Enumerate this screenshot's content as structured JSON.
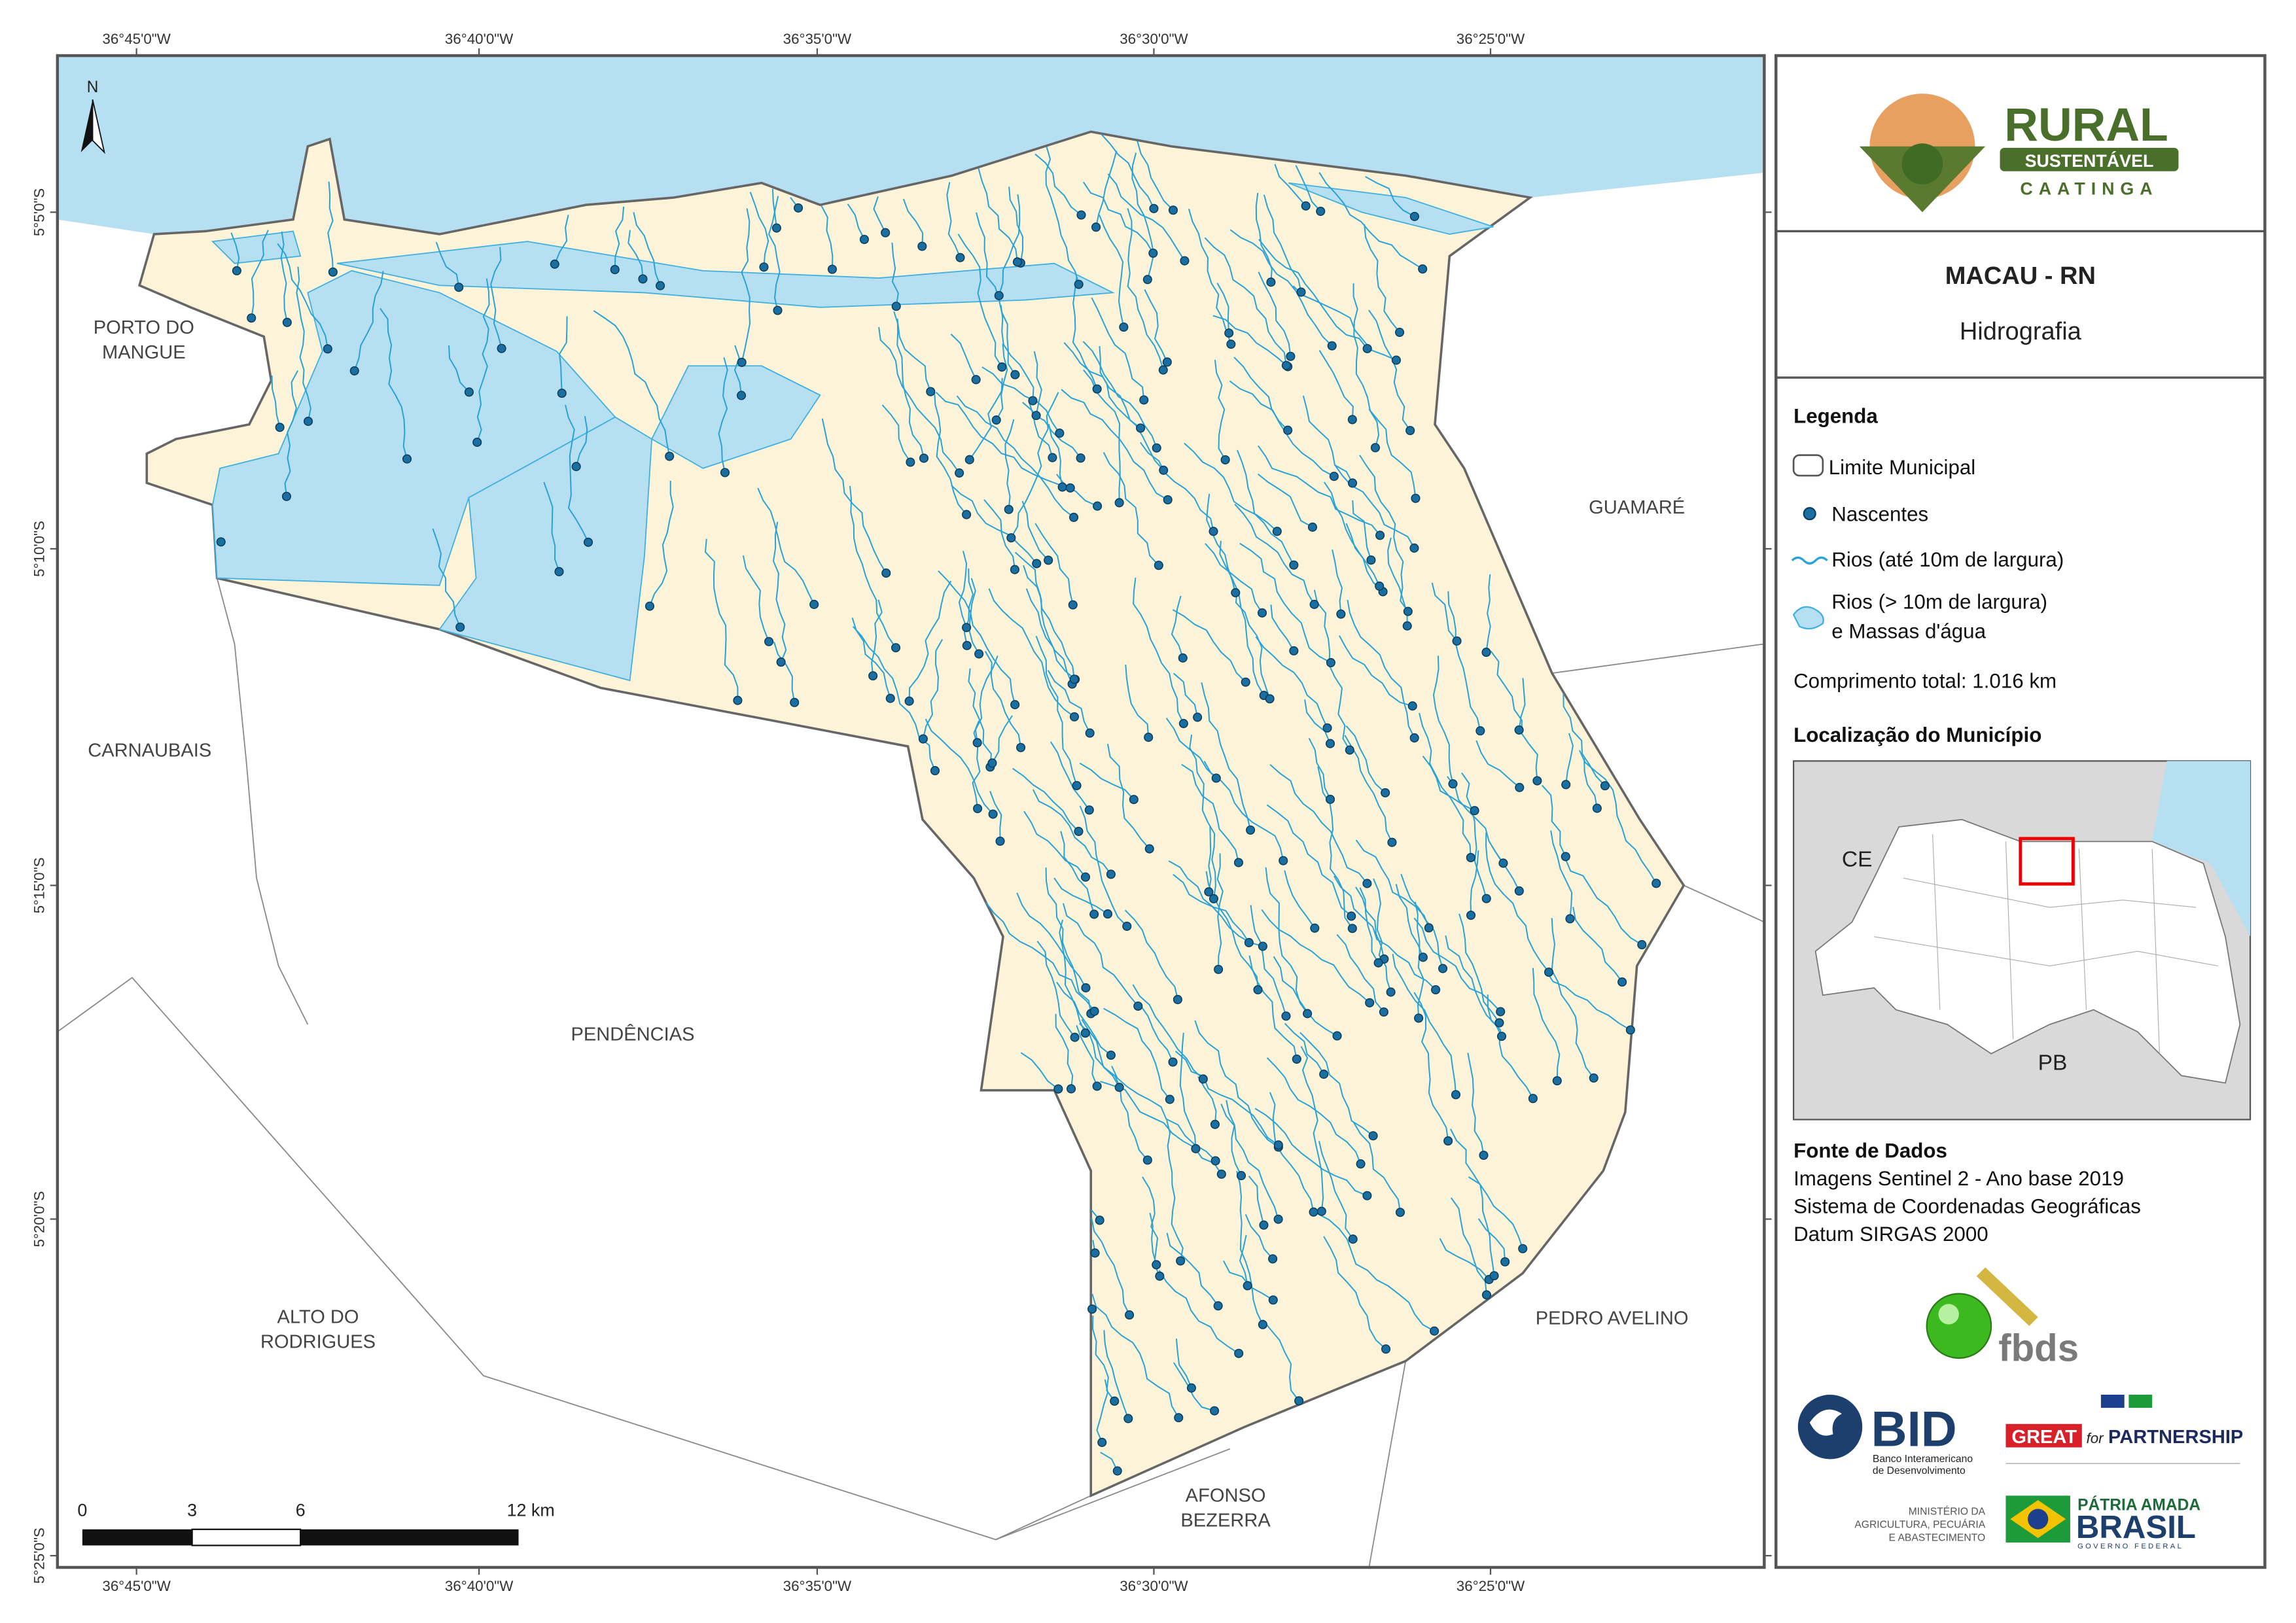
{
  "map": {
    "lon_labels": [
      "36°45'0\"W",
      "36°40'0\"W",
      "36°35'0\"W",
      "36°30'0\"W",
      "36°25'0\"W"
    ],
    "lat_labels": [
      "5°5'0\"S",
      "5°10'0\"S",
      "5°15'0\"S",
      "5°20'0\"S",
      "5°25'0\"S"
    ],
    "north": "N",
    "scale": [
      "0",
      "3",
      "6",
      "12 km"
    ],
    "places": {
      "porto_do_mangue": [
        "PORTO DO",
        "MANGUE"
      ],
      "carnaubais": "CARNAUBAIS",
      "guamare": "GUAMARÉ",
      "pendencias": "PENDÊNCIAS",
      "alto_do_rodrigues": [
        "ALTO DO",
        "RODRIGUES"
      ],
      "pedro_avelino": "PEDRO AVELINO",
      "afonso_bezerra": [
        "AFONSO",
        "BEZERRA"
      ]
    }
  },
  "panel": {
    "logo": {
      "rural": "RURAL",
      "sustentavel": "SUSTENTÁVEL",
      "caatinga": "CAATINGA"
    },
    "title": "MACAU - RN",
    "subtitle": "Hidrografia",
    "legend": {
      "heading": "Legenda",
      "items": [
        "Limite Municipal",
        "Nascentes",
        "Rios (até 10m de largura)",
        [
          "Rios (> 10m de largura)",
          "e Massas d'água"
        ]
      ],
      "length": "Comprimento total:  1.016 km"
    },
    "location": {
      "heading": "Localização do Município",
      "ce": "CE",
      "pb": "PB"
    },
    "sources": {
      "heading": "Fonte de Dados",
      "lines": [
        "Imagens Sentinel 2 - Ano base 2019",
        "Sistema de Coordenadas Geográficas",
        "Datum SIRGAS 2000"
      ]
    },
    "partners": {
      "fbds": "fbds",
      "bid": "BID",
      "bid_sub": [
        "Banco Interamericano",
        "de Desenvolvimento"
      ],
      "great": "GREAT",
      "for": "for",
      "partnership": "PARTNERSHIP",
      "ministry": [
        "MINISTÉRIO DA",
        "AGRICULTURA, PECUÁRIA",
        "E ABASTECIMENTO"
      ],
      "patria": "PÁTRIA AMADA",
      "brasil": "BRASIL",
      "governo": "GOVERNO FEDERAL"
    }
  }
}
